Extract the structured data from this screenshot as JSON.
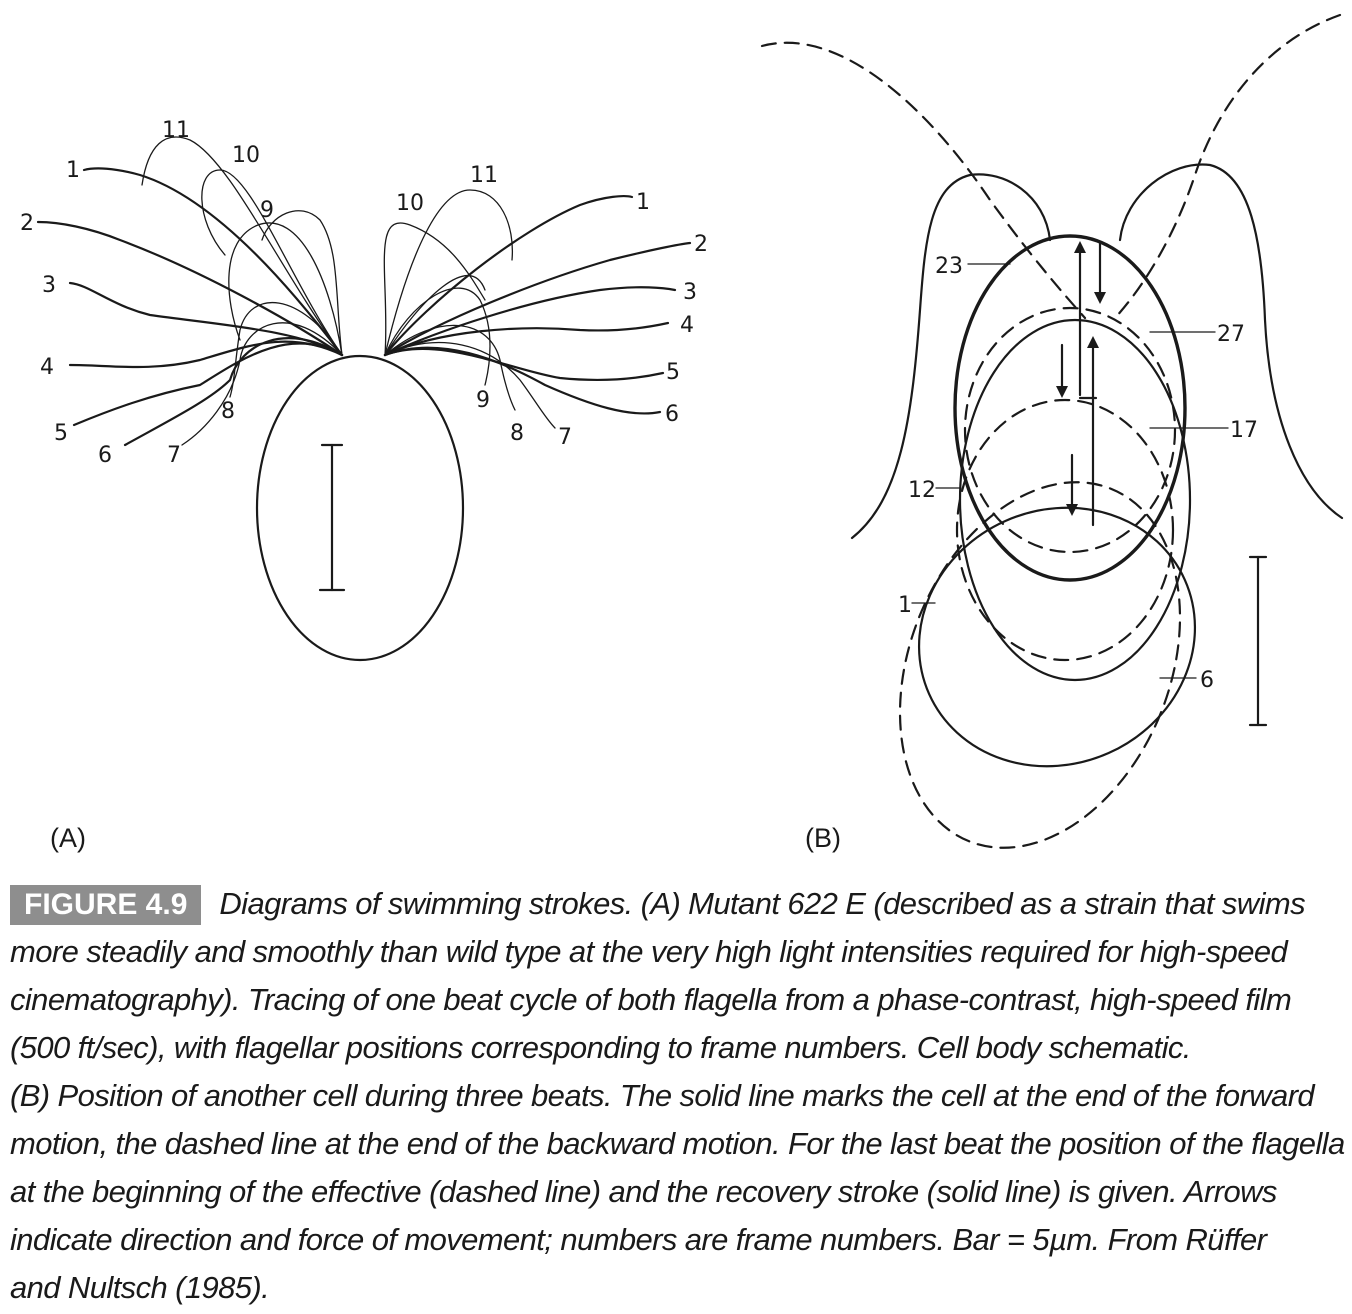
{
  "panels": {
    "a": {
      "label": "(A)",
      "left_frames": [
        "1",
        "2",
        "3",
        "4",
        "5",
        "6",
        "7",
        "8",
        "9",
        "10",
        "11"
      ],
      "right_frames": [
        "1",
        "2",
        "3",
        "4",
        "5",
        "6",
        "7",
        "8",
        "9",
        "10",
        "11"
      ]
    },
    "b": {
      "label": "(B)",
      "frame_labels": [
        "23",
        "27",
        "17",
        "12",
        "1",
        "6"
      ]
    }
  },
  "caption": {
    "badge": "FIGURE 4.9",
    "lines": [
      "Diagrams of swimming strokes. (A) Mutant 622 E (described as a strain that swims",
      "more steadily and smoothly than wild type at the very high light intensities required for high-speed",
      "cinematography). Tracing of one beat cycle of both flagella from a phase-contrast, high-speed film",
      "(500 ft/sec), with flagellar positions corresponding to frame numbers. Cell body schematic.",
      "(B) Position of another cell during three beats. The solid line marks the cell at the end of the forward",
      "motion, the dashed line at the end of the backward motion. For the last beat the position of the flagella",
      "at the beginning of the effective (dashed line) and the recovery stroke (solid line) is given. Arrows",
      "indicate direction and force of movement; numbers are frame numbers. Bar = 5µm. From Rüffer",
      "and Nultsch (1985)."
    ]
  },
  "colors": {
    "ink": "#1a1a1a",
    "badge_bg": "#8e8e8e",
    "badge_text": "#ffffff"
  }
}
